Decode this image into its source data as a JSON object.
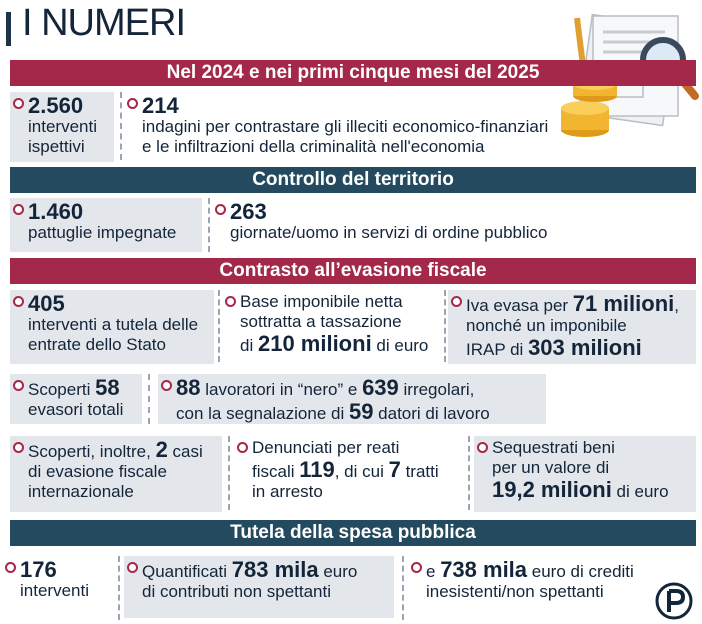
{
  "title": "I NUMERI",
  "sections": {
    "s1": "Nel 2024 e nei primi cinque mesi del 2025",
    "s2": "Controllo del territorio",
    "s3": "Contrasto all’evasione fiscale",
    "s4": "Tutela della spesa pubblica"
  },
  "stats": {
    "interventi_num": "2.560",
    "interventi_l1": "interventi",
    "interventi_l2": "ispettivi",
    "indagini_num": "214",
    "indagini_l1": "indagini per contrastare gli illeciti economico-finanziari",
    "indagini_l2": "e le infiltrazioni della criminalità nell'economia",
    "pattuglie_num": "1.460",
    "pattuglie_l1": "pattuglie impegnate",
    "giornate_num": "263",
    "giornate_l1": "giornate/uomo in servizi di ordine pubblico",
    "tutela_num": "405",
    "tutela_l1": "interventi a tutela delle",
    "tutela_l2": "entrate dello Stato",
    "base_l1": "Base imponibile netta",
    "base_l2": "sottratta a tassazione",
    "base_l3a": "di ",
    "base_l3b": "210 milioni",
    "base_l3c": " di euro",
    "iva_l1a": "Iva evasa per ",
    "iva_l1b": "71 milioni",
    "iva_l1c": ",",
    "iva_l2": "nonché un imponibile",
    "iva_l3a": "IRAP di ",
    "iva_l3b": "303 milioni",
    "evasori_l1a": "Scoperti ",
    "evasori_l1b": "58",
    "evasori_l2": "evasori totali",
    "lav_l1a": "88",
    "lav_l1b": " lavoratori in “nero” e ",
    "lav_l1c": "639",
    "lav_l1d": " irregolari,",
    "lav_l2a": "con la segnalazione di ",
    "lav_l2b": "59",
    "lav_l2c": " datori di lavoro",
    "intl_l1a": "Scoperti, inoltre, ",
    "intl_l1b": "2",
    "intl_l1c": " casi",
    "intl_l2": "di evasione fiscale",
    "intl_l3": "internazionale",
    "den_l1": "Denunciati per reati",
    "den_l2a": "fiscali ",
    "den_l2b": "119",
    "den_l2c": ", di cui ",
    "den_l2d": "7",
    "den_l2e": " tratti",
    "den_l3": "in arresto",
    "seq_l1": "Sequestrati beni",
    "seq_l2": "per un valore di",
    "seq_l3a": "19,2 milioni",
    "seq_l3b": " di euro",
    "sp_num": "176",
    "sp_l1": "interventi",
    "quant_l1a": "Quantificati ",
    "quant_l1b": "783 mila",
    "quant_l1c": " euro",
    "quant_l2": "di contributi non spettanti",
    "cred_l1a": "e ",
    "cred_l1b": "738 mila",
    "cred_l1c": " euro di crediti",
    "cred_l2": "inesistenti/non spettanti"
  },
  "colors": {
    "red": "#a3284a",
    "blue": "#234a5e",
    "gray": "#e3e6ea",
    "text": "#14253a"
  },
  "icons": [
    "documents-illustration-icon",
    "coins-icon",
    "magnifier-icon",
    "pen-icon",
    "publisher-logo-icon"
  ]
}
